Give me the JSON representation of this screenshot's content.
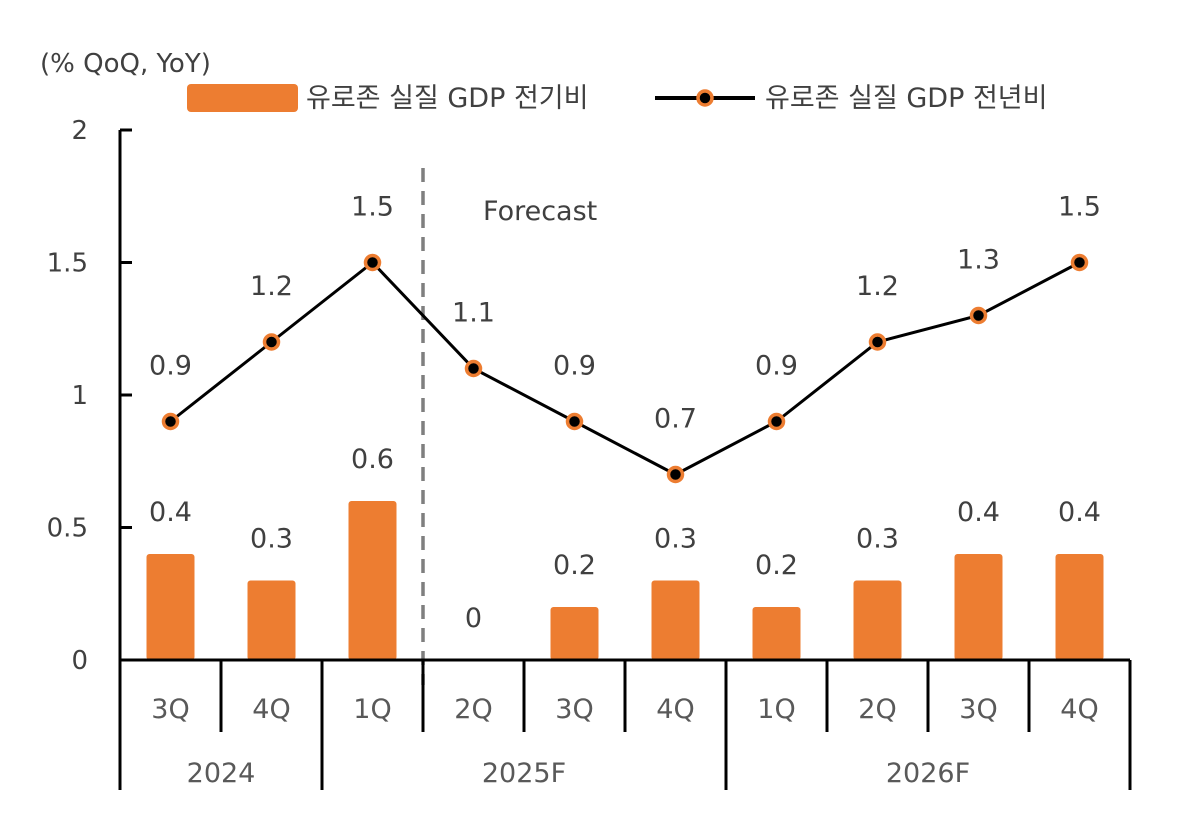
{
  "chart_data": {
    "type": "bar+line",
    "unit_label": "(% QoQ, YoY)",
    "ylim": [
      0,
      2
    ],
    "yticks": [
      0,
      0.5,
      1,
      1.5,
      2
    ],
    "ytick_labels": [
      "0",
      "0.5",
      "1",
      "1.5",
      "2"
    ],
    "categories": [
      "3Q",
      "4Q",
      "1Q",
      "2Q",
      "3Q",
      "4Q",
      "1Q",
      "2Q",
      "3Q",
      "4Q"
    ],
    "year_groups": [
      {
        "label": "2024",
        "start": 0,
        "end": 1
      },
      {
        "label": "2025F",
        "start": 2,
        "end": 5
      },
      {
        "label": "2026F",
        "start": 6,
        "end": 9
      }
    ],
    "series": [
      {
        "name": "유로존 실질 GDP 전기비",
        "type": "bar",
        "values": [
          0.4,
          0.3,
          0.6,
          0,
          0.2,
          0.3,
          0.2,
          0.3,
          0.4,
          0.4
        ],
        "labels": [
          "0.4",
          "0.3",
          "0.6",
          "0",
          "0.2",
          "0.3",
          "0.2",
          "0.3",
          "0.4",
          "0.4"
        ],
        "color": "#ED7D31"
      },
      {
        "name": "유로존 실질 GDP 전년비",
        "type": "line",
        "values": [
          0.9,
          1.2,
          1.5,
          1.1,
          0.9,
          0.7,
          0.9,
          1.2,
          1.3,
          1.5
        ],
        "labels": [
          "0.9",
          "1.2",
          "1.5",
          "1.1",
          "0.9",
          "0.7",
          "0.9",
          "1.2",
          "1.3",
          "1.5"
        ],
        "color": "#000000",
        "marker_color": "#ED7D31"
      }
    ],
    "forecast_label": "Forecast",
    "forecast_start_index": 3
  }
}
